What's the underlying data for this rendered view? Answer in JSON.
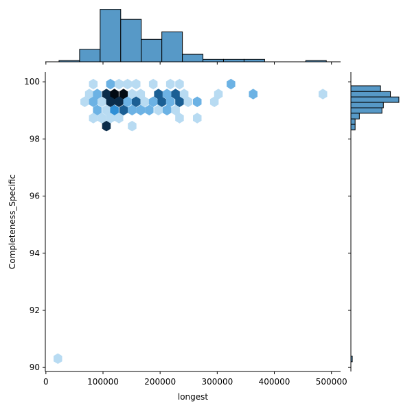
{
  "chart_data": {
    "type": "hexbin-joint",
    "xlabel": "longest",
    "ylabel": "Completeness_Specific",
    "xlim": [
      -1000,
      516000
    ],
    "ylim": [
      89.86,
      100.34
    ],
    "xticks": [
      0,
      100000,
      200000,
      300000,
      400000,
      500000
    ],
    "yticks": [
      90,
      92,
      94,
      96,
      98,
      100
    ],
    "grid": false,
    "hex_palette": {
      "1": "#b8dbf2",
      "2": "#6cb2e4",
      "3": "#2f8fd6",
      "4": "#1b5f94",
      "6": "#0b2d4b",
      "8": "#020a12"
    },
    "hexbins": [
      {
        "x": 21000,
        "y": 90.31,
        "count": 1
      },
      {
        "x": 83000,
        "y": 99.92,
        "count": 1
      },
      {
        "x": 113000,
        "y": 99.92,
        "count": 2
      },
      {
        "x": 128000,
        "y": 99.92,
        "count": 1
      },
      {
        "x": 143000,
        "y": 99.92,
        "count": 1
      },
      {
        "x": 158000,
        "y": 99.92,
        "count": 1
      },
      {
        "x": 188000,
        "y": 99.92,
        "count": 1
      },
      {
        "x": 218000,
        "y": 99.92,
        "count": 1
      },
      {
        "x": 234000,
        "y": 99.92,
        "count": 1
      },
      {
        "x": 324000,
        "y": 99.92,
        "count": 2
      },
      {
        "x": 76000,
        "y": 99.57,
        "count": 1
      },
      {
        "x": 90000,
        "y": 99.57,
        "count": 2
      },
      {
        "x": 106000,
        "y": 99.57,
        "count": 6
      },
      {
        "x": 120000,
        "y": 99.57,
        "count": 8
      },
      {
        "x": 136000,
        "y": 99.57,
        "count": 8
      },
      {
        "x": 151000,
        "y": 99.57,
        "count": 1
      },
      {
        "x": 166000,
        "y": 99.57,
        "count": 1
      },
      {
        "x": 197000,
        "y": 99.57,
        "count": 4
      },
      {
        "x": 212000,
        "y": 99.57,
        "count": 2
      },
      {
        "x": 227000,
        "y": 99.57,
        "count": 4
      },
      {
        "x": 242000,
        "y": 99.57,
        "count": 1
      },
      {
        "x": 302000,
        "y": 99.57,
        "count": 1
      },
      {
        "x": 363000,
        "y": 99.57,
        "count": 2
      },
      {
        "x": 485000,
        "y": 99.57,
        "count": 1
      },
      {
        "x": 68000,
        "y": 99.3,
        "count": 1
      },
      {
        "x": 83000,
        "y": 99.3,
        "count": 2
      },
      {
        "x": 98000,
        "y": 99.3,
        "count": 1
      },
      {
        "x": 113000,
        "y": 99.3,
        "count": 6
      },
      {
        "x": 128000,
        "y": 99.3,
        "count": 6
      },
      {
        "x": 143000,
        "y": 99.3,
        "count": 2
      },
      {
        "x": 158000,
        "y": 99.3,
        "count": 4
      },
      {
        "x": 173000,
        "y": 99.3,
        "count": 1
      },
      {
        "x": 188000,
        "y": 99.3,
        "count": 2
      },
      {
        "x": 203000,
        "y": 99.3,
        "count": 4
      },
      {
        "x": 218000,
        "y": 99.3,
        "count": 2
      },
      {
        "x": 234000,
        "y": 99.3,
        "count": 4
      },
      {
        "x": 249000,
        "y": 99.3,
        "count": 1
      },
      {
        "x": 265000,
        "y": 99.3,
        "count": 2
      },
      {
        "x": 295000,
        "y": 99.3,
        "count": 1
      },
      {
        "x": 90000,
        "y": 99.01,
        "count": 2
      },
      {
        "x": 106000,
        "y": 99.01,
        "count": 1
      },
      {
        "x": 120000,
        "y": 99.01,
        "count": 3
      },
      {
        "x": 136000,
        "y": 99.01,
        "count": 4
      },
      {
        "x": 151000,
        "y": 99.01,
        "count": 2
      },
      {
        "x": 166000,
        "y": 99.01,
        "count": 2
      },
      {
        "x": 181000,
        "y": 99.01,
        "count": 2
      },
      {
        "x": 197000,
        "y": 99.01,
        "count": 1
      },
      {
        "x": 212000,
        "y": 99.01,
        "count": 2
      },
      {
        "x": 227000,
        "y": 99.01,
        "count": 1
      },
      {
        "x": 83000,
        "y": 98.73,
        "count": 1
      },
      {
        "x": 98000,
        "y": 98.73,
        "count": 1
      },
      {
        "x": 113000,
        "y": 98.73,
        "count": 1
      },
      {
        "x": 128000,
        "y": 98.73,
        "count": 1
      },
      {
        "x": 234000,
        "y": 98.73,
        "count": 1
      },
      {
        "x": 265000,
        "y": 98.73,
        "count": 1
      },
      {
        "x": 106000,
        "y": 98.45,
        "count": 6
      },
      {
        "x": 151000,
        "y": 98.45,
        "count": 1
      }
    ],
    "marginal_x_hist": {
      "bin_start": 23000,
      "bin_width": 36000,
      "counts": [
        1,
        10,
        42,
        34,
        18,
        24,
        6,
        2,
        2,
        2,
        0,
        0,
        1
      ],
      "ylim": [
        0,
        44
      ]
    },
    "marginal_y_hist": {
      "bins": [
        {
          "lo": 99.66,
          "hi": 99.86,
          "count": 21
        },
        {
          "lo": 99.47,
          "hi": 99.66,
          "count": 28
        },
        {
          "lo": 99.28,
          "hi": 99.47,
          "count": 34
        },
        {
          "lo": 99.09,
          "hi": 99.28,
          "count": 23
        },
        {
          "lo": 98.9,
          "hi": 99.09,
          "count": 22
        },
        {
          "lo": 98.7,
          "hi": 98.9,
          "count": 6
        },
        {
          "lo": 98.51,
          "hi": 98.7,
          "count": 3
        },
        {
          "lo": 98.32,
          "hi": 98.51,
          "count": 3
        },
        {
          "lo": 90.2,
          "hi": 90.4,
          "count": 1
        }
      ],
      "xlim": [
        0,
        36
      ]
    },
    "hist_color": "#5799c7",
    "edge_color": "#000000"
  }
}
